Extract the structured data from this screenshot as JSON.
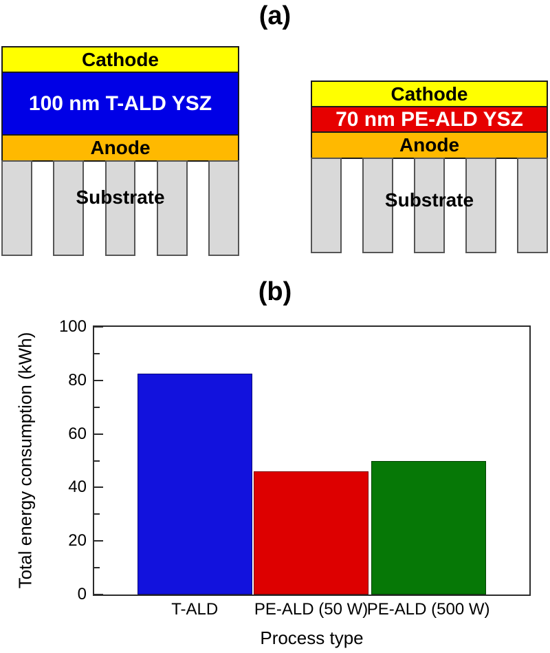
{
  "figure": {
    "panel_a_label": "(a)",
    "panel_b_label": "(b)"
  },
  "panel_a": {
    "left_device": {
      "cathode_label": "Cathode",
      "electrolyte_label": "100 nm T-ALD YSZ",
      "anode_label": "Anode",
      "substrate_label": "Substrate",
      "colors": {
        "cathode": "#FFFF00",
        "electrolyte": "#0000E6",
        "anode": "#FFB900",
        "substrate": "#D9D9D9"
      }
    },
    "right_device": {
      "cathode_label": "Cathode",
      "electrolyte_label": "70 nm PE-ALD YSZ",
      "anode_label": "Anode",
      "substrate_label": "Substrate",
      "colors": {
        "cathode": "#FFFF00",
        "electrolyte": "#E60000",
        "anode": "#FFB900",
        "substrate": "#D9D9D9"
      }
    }
  },
  "chart_data": {
    "type": "bar",
    "title": "(b)",
    "categories": [
      "T-ALD",
      "PE-ALD (50 W)",
      "PE-ALD (500 W)"
    ],
    "values": [
      82.5,
      46,
      50
    ],
    "bar_colors": [
      "#1212DD",
      "#DD0000",
      "#067806"
    ],
    "xlabel": "Process type",
    "ylabel": "Total energy consumption (kWh)",
    "ylim": [
      0,
      100
    ],
    "yticks_major": [
      0,
      20,
      40,
      60,
      80,
      100
    ],
    "yticks_minor": [
      10,
      30,
      50,
      70,
      90
    ],
    "grid": false,
    "legend": false,
    "axis_color": "#2b2b2b"
  }
}
